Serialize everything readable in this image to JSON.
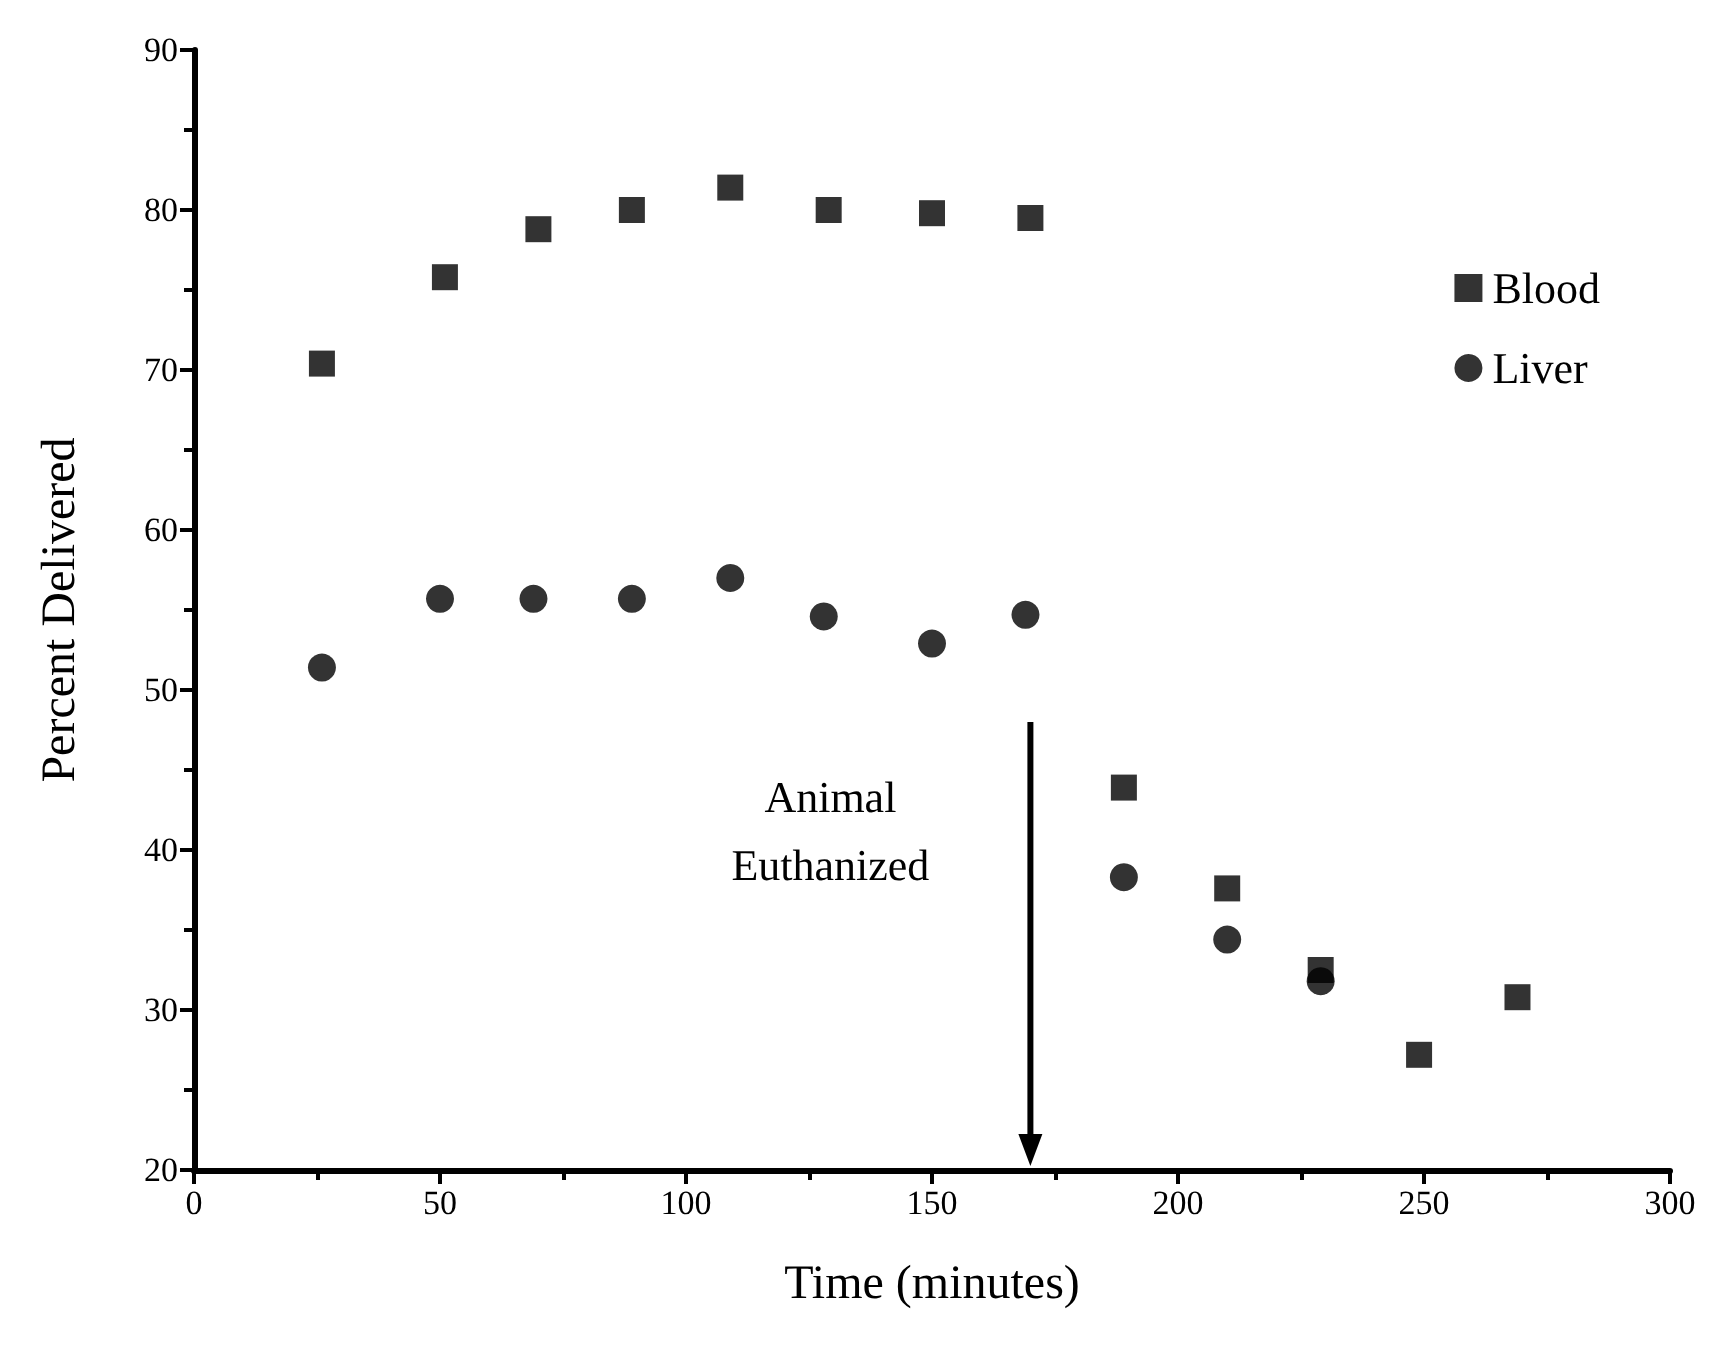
{
  "chart_data": {
    "type": "scatter",
    "xlabel": "Time (minutes)",
    "ylabel": "Percent Delivered",
    "xlim": [
      0,
      300
    ],
    "xticks": [
      0,
      50,
      100,
      150,
      200,
      250,
      300
    ],
    "ylim": [
      20,
      90
    ],
    "yticks": [
      20,
      30,
      40,
      50,
      60,
      70,
      80,
      90
    ],
    "grid": false,
    "legend": "top right",
    "ref_lines": [
      {
        "axis": "x",
        "value": 170,
        "label": "Animal\nEuthanized"
      }
    ],
    "series": [
      {
        "name": "Blood",
        "color": "#000000",
        "marker": "square",
        "x": [
          26,
          51,
          70,
          89,
          109,
          129,
          150,
          170,
          189,
          210,
          229,
          249,
          269
        ],
        "values": [
          70.4,
          75.8,
          78.8,
          80.0,
          81.4,
          80.0,
          79.8,
          79.5,
          43.9,
          37.6,
          32.5,
          27.2,
          30.8
        ]
      },
      {
        "name": "Liver",
        "color": "#000000",
        "marker": "circle",
        "x": [
          26,
          50,
          69,
          89,
          109,
          128,
          150,
          169,
          189,
          210,
          229
        ],
        "values": [
          51.4,
          55.7,
          55.7,
          55.7,
          57.0,
          54.6,
          52.9,
          54.7,
          38.3,
          34.4,
          31.8
        ]
      }
    ]
  }
}
